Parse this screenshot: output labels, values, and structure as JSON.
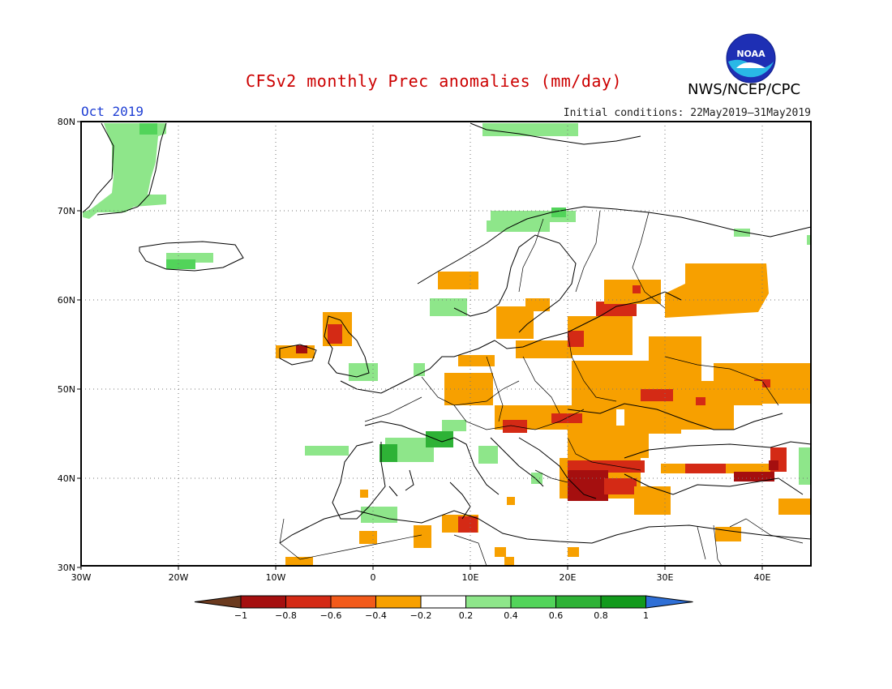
{
  "title": "CFSv2 monthly Prec anomalies (mm/day)",
  "agency": "NWS/NCEP/CPC",
  "logo_text": "NOAA",
  "month": "Oct 2019",
  "initial_conditions": "Initial conditions: 22May2019—31May2019",
  "map": {
    "lon_ticks": [
      "30W",
      "20W",
      "10W",
      "0",
      "10E",
      "20E",
      "30E",
      "40E"
    ],
    "lat_ticks": [
      "80N",
      "70N",
      "60N",
      "50N",
      "40N",
      "30N"
    ]
  },
  "colorbar": {
    "labels": [
      "−1",
      "−0.8",
      "−0.6",
      "−0.4",
      "−0.2",
      "0.2",
      "0.4",
      "0.6",
      "0.8",
      "1"
    ],
    "colors": [
      "#6b3a1e",
      "#a50f0f",
      "#d42a15",
      "#f25a1a",
      "#f7a000",
      "#ffffff",
      "#8ee68a",
      "#52d45a",
      "#2eb236",
      "#129a1c",
      "#2f6fd6"
    ]
  }
}
